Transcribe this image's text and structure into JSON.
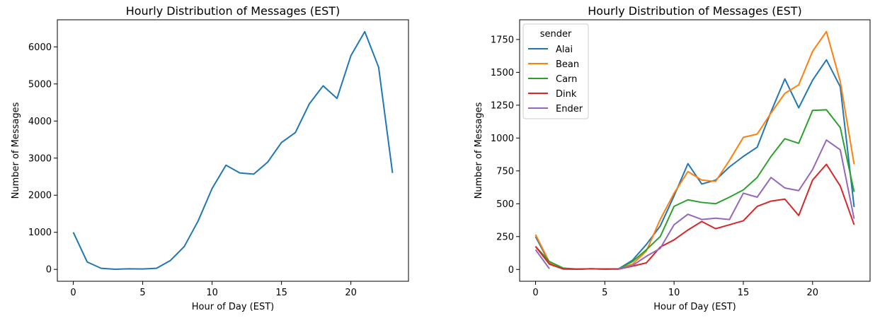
{
  "chart_data": [
    {
      "type": "line",
      "title": "Hourly Distribution of Messages (EST)",
      "xlabel": "Hour of Day (EST)",
      "ylabel": "Number of Messages",
      "xlim": [
        -1.15,
        24.15
      ],
      "ylim": [
        -320,
        6730
      ],
      "xticks": [
        0,
        5,
        10,
        15,
        20
      ],
      "yticks": [
        0,
        1000,
        2000,
        3000,
        4000,
        5000,
        6000
      ],
      "grid": false,
      "series": [
        {
          "color": "#1f77b4",
          "x": [
            0,
            1,
            2,
            3,
            4,
            5,
            6,
            7,
            8,
            9,
            10,
            11,
            12,
            13,
            14,
            15,
            16,
            17,
            18,
            19,
            20,
            21,
            22,
            23
          ],
          "y": [
            1000,
            200,
            30,
            5,
            15,
            10,
            30,
            240,
            620,
            1310,
            2180,
            2810,
            2600,
            2570,
            2890,
            3420,
            3690,
            4460,
            4950,
            4610,
            5760,
            6410,
            5450,
            2600
          ]
        }
      ]
    },
    {
      "type": "line",
      "title": "Hourly Distribution of Messages (EST)",
      "xlabel": "Hour of Day (EST)",
      "ylabel": "Number of Messages",
      "xlim": [
        -1.15,
        24.15
      ],
      "ylim": [
        -90,
        1900
      ],
      "xticks": [
        0,
        5,
        10,
        15,
        20
      ],
      "yticks": [
        0,
        250,
        500,
        750,
        1000,
        1250,
        1500,
        1750
      ],
      "grid": false,
      "legend": {
        "title": "sender",
        "position": "top-left"
      },
      "series": [
        {
          "name": "Alai",
          "color": "#1f77b4",
          "x": [
            0,
            1,
            2,
            3,
            4,
            5,
            6,
            7,
            8,
            9,
            10,
            11,
            12,
            13,
            14,
            15,
            16,
            17,
            18,
            19,
            20,
            21,
            22,
            23
          ],
          "y": [
            250,
            50,
            5,
            2,
            5,
            3,
            5,
            70,
            190,
            330,
            560,
            805,
            650,
            680,
            780,
            860,
            930,
            1200,
            1450,
            1230,
            1440,
            1595,
            1390,
            475
          ]
        },
        {
          "name": "Bean",
          "color": "#ff7f0e",
          "x": [
            0,
            1,
            2,
            3,
            4,
            5,
            6,
            7,
            8,
            9,
            10,
            11,
            12,
            13,
            14,
            15,
            16,
            17,
            18,
            19,
            20,
            21,
            22,
            23
          ],
          "y": [
            265,
            55,
            5,
            2,
            5,
            3,
            5,
            40,
            140,
            380,
            580,
            745,
            680,
            670,
            830,
            1005,
            1030,
            1190,
            1340,
            1405,
            1660,
            1810,
            1430,
            800
          ]
        },
        {
          "name": "Carn",
          "color": "#2ca02c",
          "x": [
            0,
            1,
            2,
            3,
            4,
            5,
            6,
            7,
            8,
            9,
            10,
            11,
            12,
            13,
            14,
            15,
            16,
            17,
            18,
            19,
            20,
            21,
            22,
            23
          ],
          "y": [
            175,
            60,
            10,
            3,
            5,
            3,
            5,
            60,
            150,
            250,
            480,
            530,
            510,
            500,
            550,
            605,
            700,
            860,
            995,
            960,
            1210,
            1215,
            1080,
            590
          ]
        },
        {
          "name": "Dink",
          "color": "#d62728",
          "x": [
            0,
            1,
            2,
            3,
            4,
            5,
            6,
            7,
            8,
            9,
            10,
            11,
            12,
            13,
            14,
            15,
            16,
            17,
            18,
            19,
            20,
            21,
            22,
            23
          ],
          "y": [
            175,
            40,
            3,
            2,
            5,
            3,
            3,
            25,
            50,
            170,
            225,
            300,
            365,
            310,
            340,
            370,
            480,
            520,
            535,
            410,
            680,
            800,
            635,
            340
          ]
        },
        {
          "name": "Ender",
          "color": "#9467bd",
          "x": [
            0,
            1
          ],
          "y": [
            150,
            5
          ]
        },
        {
          "name": "Ender",
          "color": "#9467bd",
          "x": [
            6,
            7,
            8,
            9,
            10,
            11,
            12,
            13,
            14,
            15,
            16,
            17,
            18,
            19,
            20,
            21,
            22,
            23
          ],
          "y": [
            5,
            30,
            100,
            160,
            340,
            420,
            380,
            390,
            380,
            580,
            550,
            700,
            620,
            600,
            760,
            985,
            910,
            385
          ]
        }
      ]
    }
  ]
}
